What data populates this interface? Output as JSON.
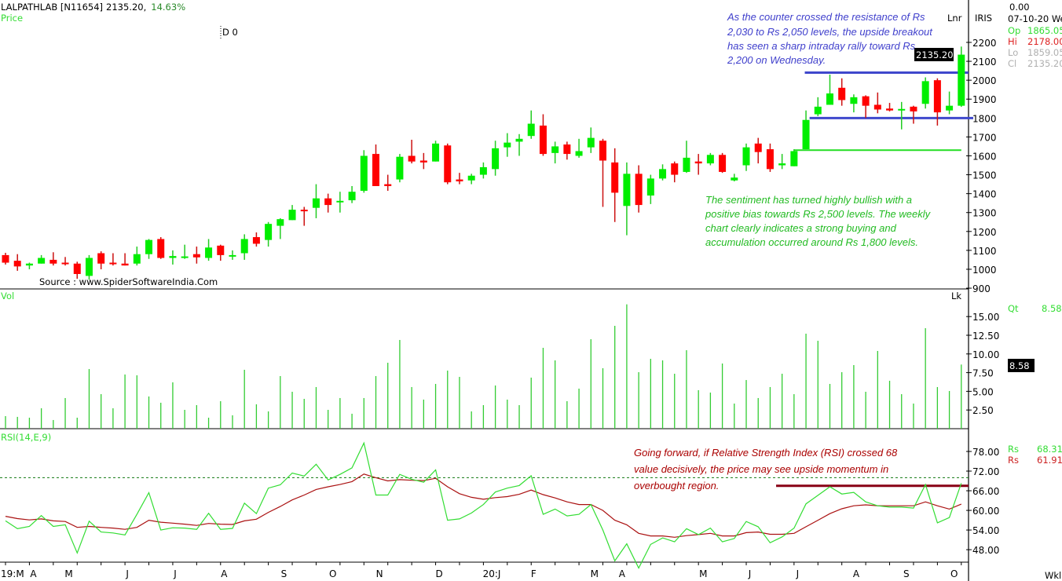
{
  "header": {
    "symbol": "LALPATHLAB [N11654]",
    "last": "2135.20,",
    "change": "14.63%",
    "price_label": "Price",
    "draw_label": "D 0",
    "source": "Source : www.SpiderSoftwareIndia.Com",
    "scale_mode": "Lnr",
    "brand": "IRIS"
  },
  "info_panel": {
    "top_value": "0.00",
    "date": "07-10-20 We",
    "open_label": "Op",
    "open": "1865.05",
    "high_label": "Hi",
    "high": "2178.00",
    "low_label": "Lo",
    "low": "1859.05",
    "close_label": "Cl",
    "close": "2135.20",
    "price_badge": "2135.20"
  },
  "volume_panel": {
    "label": "Vol",
    "unit": "Lk",
    "qty_label": "Qt",
    "qty": "8.58",
    "badge": "8.58"
  },
  "rsi_panel": {
    "label": "RSI(14,E,9)",
    "rsi_label": "Rs",
    "rsi_value": "68.31",
    "signal_label": "Rs",
    "signal_value": "61.91"
  },
  "footer": {
    "period": "Wkl"
  },
  "annotations": {
    "breakout": [
      "As the counter crossed the resistance of Rs",
      "2,030 to Rs 2,050 levels, the upside breakout",
      "has seen a sharp intraday rally toward Rs",
      "2,200 on Wednesday."
    ],
    "sentiment": [
      "The sentiment has turned highly bullish with a",
      "positive bias towards Rs 2,500 levels. The weekly",
      "chart clearly indicates a strong buying and",
      "accumulation occurred around Rs 1,800 levels."
    ],
    "rsi": [
      "Going forward, if Relative Strength Index (RSI) crossed 68",
      "value decisively, the price may see upside momentum in",
      "overbought region."
    ]
  },
  "colors": {
    "up": "#00ee00",
    "down": "#ff0000",
    "volume": "#33cc33",
    "rsi": "#33dd33",
    "signal": "#aa1111",
    "resistance": "#3f48cc",
    "support": "#22dd22",
    "rsi_level": "#880015",
    "note_blue": "#4040cc",
    "note_green": "#22bb22",
    "note_red": "#aa0000"
  },
  "chart_data": {
    "type": "candlestick",
    "title": "LALPATHLAB [N11654] weekly",
    "price_axis": {
      "ticks": [
        900,
        1000,
        1100,
        1200,
        1300,
        1400,
        1500,
        1600,
        1700,
        1800,
        1900,
        2000,
        2100,
        2200
      ],
      "range": [
        900,
        2200
      ]
    },
    "x_labels": [
      {
        "label": "19:M",
        "week": 0.3
      },
      {
        "label": "A",
        "week": 2.2
      },
      {
        "label": "M",
        "week": 5.3
      },
      {
        "label": "J",
        "week": 10.2
      },
      {
        "label": "J",
        "week": 14.2
      },
      {
        "label": "A",
        "week": 18.3
      },
      {
        "label": "S",
        "week": 23.3
      },
      {
        "label": "O",
        "week": 27.4
      },
      {
        "label": "N",
        "week": 31.3
      },
      {
        "label": "D",
        "week": 36.3
      },
      {
        "label": "20:J",
        "week": 40.7
      },
      {
        "label": "F",
        "week": 44.2
      },
      {
        "label": "M",
        "week": 49.3
      },
      {
        "label": "A",
        "week": 51.6
      },
      {
        "label": "M",
        "week": 58.4
      },
      {
        "label": "J",
        "week": 62.3
      },
      {
        "label": "J",
        "week": 66.3
      },
      {
        "label": "A",
        "week": 71.2
      },
      {
        "label": "S",
        "week": 75.4
      },
      {
        "label": "O",
        "week": 79.4
      }
    ],
    "ohlc": [
      [
        1075,
        1087,
        1025,
        1035
      ],
      [
        1045,
        1080,
        992,
        1015
      ],
      [
        1020,
        1035,
        1000,
        1030
      ],
      [
        1030,
        1075,
        1030,
        1060
      ],
      [
        1050,
        1090,
        1020,
        1030
      ],
      [
        1035,
        1065,
        1020,
        1032
      ],
      [
        1030,
        1040,
        950,
        975
      ],
      [
        965,
        1075,
        945,
        1060
      ],
      [
        1085,
        1095,
        1000,
        1030
      ],
      [
        1035,
        1085,
        1020,
        1032
      ],
      [
        1030,
        1085,
        1020,
        1020
      ],
      [
        1030,
        1120,
        1020,
        1080
      ],
      [
        1080,
        1160,
        1055,
        1155
      ],
      [
        1160,
        1170,
        1055,
        1060
      ],
      [
        1060,
        1100,
        1025,
        1070
      ],
      [
        1063,
        1130,
        1055,
        1068
      ],
      [
        1080,
        1120,
        1030,
        1063
      ],
      [
        1060,
        1160,
        1045,
        1115
      ],
      [
        1125,
        1130,
        1045,
        1075
      ],
      [
        1070,
        1100,
        1050,
        1075
      ],
      [
        1085,
        1185,
        1050,
        1160
      ],
      [
        1170,
        1195,
        1120,
        1135
      ],
      [
        1155,
        1250,
        1120,
        1240
      ],
      [
        1230,
        1270,
        1160,
        1265
      ],
      [
        1260,
        1340,
        1260,
        1315
      ],
      [
        1315,
        1330,
        1230,
        1310
      ],
      [
        1325,
        1450,
        1270,
        1375
      ],
      [
        1375,
        1400,
        1300,
        1340
      ],
      [
        1355,
        1410,
        1300,
        1362
      ],
      [
        1365,
        1440,
        1350,
        1410
      ],
      [
        1415,
        1630,
        1405,
        1600
      ],
      [
        1610,
        1660,
        1440,
        1440
      ],
      [
        1450,
        1500,
        1415,
        1440
      ],
      [
        1475,
        1610,
        1460,
        1595
      ],
      [
        1600,
        1685,
        1560,
        1570
      ],
      [
        1575,
        1615,
        1530,
        1565
      ],
      [
        1570,
        1680,
        1570,
        1665
      ],
      [
        1655,
        1665,
        1450,
        1460
      ],
      [
        1475,
        1510,
        1450,
        1465
      ],
      [
        1470,
        1505,
        1450,
        1495
      ],
      [
        1500,
        1565,
        1480,
        1540
      ],
      [
        1530,
        1680,
        1495,
        1640
      ],
      [
        1645,
        1720,
        1595,
        1670
      ],
      [
        1675,
        1715,
        1600,
        1690
      ],
      [
        1705,
        1840,
        1690,
        1770
      ],
      [
        1760,
        1820,
        1600,
        1610
      ],
      [
        1615,
        1675,
        1560,
        1650
      ],
      [
        1660,
        1675,
        1580,
        1610
      ],
      [
        1600,
        1690,
        1590,
        1625
      ],
      [
        1645,
        1750,
        1615,
        1695
      ],
      [
        1680,
        1690,
        1330,
        1575
      ],
      [
        1565,
        1640,
        1250,
        1405
      ],
      [
        1335,
        1565,
        1180,
        1505
      ],
      [
        1505,
        1550,
        1300,
        1340
      ],
      [
        1390,
        1500,
        1345,
        1480
      ],
      [
        1480,
        1555,
        1470,
        1530
      ],
      [
        1560,
        1570,
        1460,
        1500
      ],
      [
        1515,
        1680,
        1510,
        1590
      ],
      [
        1570,
        1610,
        1500,
        1560
      ],
      [
        1560,
        1615,
        1550,
        1605
      ],
      [
        1605,
        1615,
        1510,
        1515
      ],
      [
        1470,
        1505,
        1465,
        1485
      ],
      [
        1550,
        1665,
        1520,
        1645
      ],
      [
        1665,
        1695,
        1560,
        1620
      ],
      [
        1635,
        1665,
        1515,
        1530
      ],
      [
        1550,
        1610,
        1530,
        1560
      ],
      [
        1545,
        1635,
        1545,
        1625
      ],
      [
        1635,
        1840,
        1635,
        1790
      ],
      [
        1820,
        1910,
        1810,
        1860
      ],
      [
        1870,
        2030,
        1870,
        1930
      ],
      [
        1960,
        2010,
        1865,
        1895
      ],
      [
        1875,
        1925,
        1830,
        1910
      ],
      [
        1915,
        1920,
        1800,
        1865
      ],
      [
        1870,
        1935,
        1825,
        1845
      ],
      [
        1850,
        1880,
        1835,
        1840
      ],
      [
        1842,
        1885,
        1740,
        1848
      ],
      [
        1860,
        1865,
        1770,
        1835
      ],
      [
        1875,
        2015,
        1850,
        1995
      ],
      [
        2000,
        2010,
        1760,
        1830
      ],
      [
        1840,
        1940,
        1820,
        1865
      ],
      [
        1865.05,
        2178,
        1859.05,
        2135.2
      ]
    ],
    "trendlines": [
      {
        "name": "resistance",
        "price": 2040,
        "from_week": 66.9,
        "to_week": 80.6
      },
      {
        "name": "support",
        "price": 1800,
        "from_week": 67.3,
        "to_week": 81
      },
      {
        "name": "base",
        "price": 1630,
        "from_week": 66,
        "to_week": 80
      }
    ],
    "volume": {
      "unit": "Lk",
      "ticks": [
        2.5,
        5,
        7.5,
        10,
        12.5,
        15
      ],
      "tick_labels": [
        "2.50",
        "5.00",
        "7.50",
        "10.00",
        "12.50",
        "15.00"
      ],
      "values": [
        1.68,
        1.58,
        1.47,
        2.73,
        1.16,
        4.1,
        1.47,
        7.98,
        4.62,
        2.73,
        7.25,
        7.14,
        4.31,
        3.47,
        6.2,
        2.52,
        3.15,
        1.47,
        3.68,
        1.79,
        7.88,
        3.26,
        2.31,
        7.04,
        4.94,
        3.99,
        5.57,
        2.52,
        4.1,
        2.0,
        4.1,
        7.04,
        8.82,
        11.87,
        5.57,
        3.89,
        5.99,
        7.77,
        6.93,
        2.31,
        3.15,
        5.78,
        3.89,
        3.15,
        6.83,
        10.82,
        9.14,
        3.68,
        5.36,
        11.97,
        8.09,
        13.76,
        16.63,
        7.56,
        9.35,
        9.14,
        7.35,
        10.5,
        5.15,
        4.83,
        8.72,
        3.36,
        6.51,
        4.1,
        5.57,
        7.35,
        4.62,
        12.71,
        11.76,
        5.99,
        7.56,
        8.51,
        4.94,
        10.4,
        6.41,
        4.62,
        3.36,
        13.45,
        5.57,
        5.04,
        8.58
      ]
    },
    "rsi": {
      "ticks": [
        48,
        54,
        60,
        66,
        72,
        78
      ],
      "tick_labels": [
        "48.00",
        "54.00",
        "60.00",
        "66.00",
        "72.00",
        "78.00"
      ],
      "overbought": 70,
      "marked_level": 67.5,
      "marked_from_week": 64.5,
      "rsi": [
        56.8,
        54.4,
        55.1,
        58.4,
        55.1,
        55.6,
        47.0,
        56.7,
        53.4,
        53.1,
        52.5,
        58.8,
        65.4,
        54.0,
        54.7,
        54.6,
        54.2,
        59.1,
        54.2,
        54.5,
        62.2,
        59.0,
        66.8,
        67.8,
        71.4,
        70.5,
        74.1,
        69.3,
        71.0,
        73.0,
        80.6,
        64.7,
        64.7,
        71.0,
        69.5,
        68.6,
        72.4,
        57.0,
        57.4,
        59.2,
        61.8,
        65.6,
        66.8,
        67.6,
        70.6,
        58.8,
        60.4,
        58.3,
        58.8,
        61.8,
        54.0,
        44.6,
        49.8,
        42.4,
        49.6,
        51.6,
        50.4,
        54.4,
        52.6,
        54.6,
        50.4,
        51.4,
        56.6,
        55.0,
        50.1,
        51.9,
        54.6,
        62.0,
        64.6,
        67.2,
        65.0,
        65.5,
        62.6,
        61.4,
        61.0,
        61.0,
        60.7,
        67.9,
        56.2,
        57.8,
        68.3
      ],
      "signal": [
        58.2,
        57.5,
        57.1,
        57.4,
        56.8,
        56.6,
        54.8,
        55.1,
        54.8,
        54.6,
        54.2,
        54.8,
        57.0,
        56.4,
        56.1,
        55.8,
        55.4,
        56.0,
        55.8,
        55.7,
        56.8,
        57.3,
        59.4,
        61.2,
        63.2,
        64.7,
        66.4,
        67.2,
        67.9,
        68.8,
        71.1,
        70.0,
        69.0,
        69.4,
        69.2,
        69.1,
        69.8,
        67.2,
        65.1,
        64.0,
        63.4,
        63.9,
        64.2,
        64.9,
        66.2,
        64.8,
        63.8,
        62.6,
        61.8,
        61.8,
        60.0,
        57.0,
        55.6,
        53.0,
        52.2,
        52.2,
        51.8,
        52.3,
        52.6,
        53.0,
        52.2,
        52.2,
        53.2,
        53.4,
        52.7,
        52.7,
        53.0,
        55.0,
        57.0,
        59.0,
        60.5,
        61.4,
        61.7,
        61.4,
        61.4,
        61.4,
        61.4,
        62.6,
        61.4,
        60.4,
        61.9
      ]
    }
  }
}
